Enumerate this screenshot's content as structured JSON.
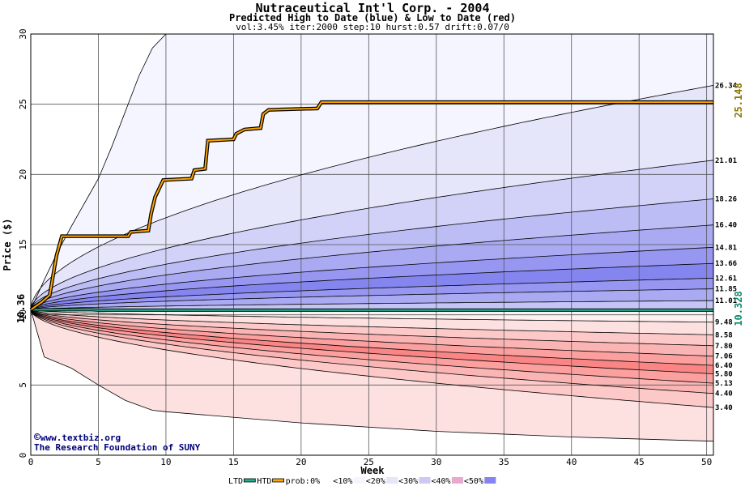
{
  "chart_data": {
    "type": "area",
    "title": "Nutraceutical Int'l Corp. - 2004",
    "subtitle": "Predicted High to Date (blue) &  Low to Date (red)",
    "params": "vol:3.45% iter:2000 step:10 hurst:0.57 drift:0.07/0",
    "xlabel": "Week",
    "ylabel": "Price ($)",
    "xlim": [
      0,
      50.5
    ],
    "ylim": [
      0,
      30
    ],
    "x_ticks": [
      0,
      5,
      10,
      15,
      20,
      25,
      30,
      35,
      40,
      45,
      50
    ],
    "y_ticks": [
      0,
      5,
      10,
      15,
      20,
      25,
      30
    ],
    "grid": true,
    "start_price": 10.36,
    "start_label": "10.36",
    "high_to_date": {
      "name": "HTD",
      "final_label": "25.148",
      "color": "#ffa500",
      "points": [
        [
          0,
          10.36
        ],
        [
          0.8,
          10.9
        ],
        [
          1.4,
          11.4
        ],
        [
          1.9,
          14.2
        ],
        [
          2.3,
          15.6
        ],
        [
          7.2,
          15.6
        ],
        [
          7.4,
          15.9
        ],
        [
          8.7,
          16.0
        ],
        [
          8.9,
          17.2
        ],
        [
          9.2,
          18.4
        ],
        [
          9.5,
          19.0
        ],
        [
          9.8,
          19.6
        ],
        [
          11.9,
          19.7
        ],
        [
          12.1,
          20.3
        ],
        [
          12.9,
          20.4
        ],
        [
          13.1,
          22.4
        ],
        [
          15.0,
          22.5
        ],
        [
          15.2,
          22.9
        ],
        [
          15.8,
          23.2
        ],
        [
          17.0,
          23.3
        ],
        [
          17.2,
          24.3
        ],
        [
          17.6,
          24.6
        ],
        [
          21.2,
          24.7
        ],
        [
          21.5,
          25.15
        ],
        [
          50.5,
          25.15
        ]
      ]
    },
    "low_to_date": {
      "name": "LTD",
      "final_label": "10.328",
      "color": "#20b090",
      "points": [
        [
          0,
          10.36
        ],
        [
          4.5,
          10.36
        ],
        [
          5.0,
          10.33
        ],
        [
          50.5,
          10.33
        ]
      ]
    },
    "upper_bands": {
      "final_labels": [
        "26.34",
        "21.01",
        "18.26",
        "16.40",
        "14.81",
        "13.66",
        "12.61",
        "11.85",
        "11.01"
      ],
      "final_values": [
        26.34,
        21.01,
        18.26,
        16.4,
        14.81,
        13.66,
        12.61,
        11.85,
        11.01
      ],
      "extreme_curve": [
        [
          0,
          10.36
        ],
        [
          1,
          12.5
        ],
        [
          2,
          14.5
        ],
        [
          3,
          16.3
        ],
        [
          4,
          18.0
        ],
        [
          5,
          19.7
        ],
        [
          6,
          22.0
        ],
        [
          7,
          24.5
        ],
        [
          8,
          27.0
        ],
        [
          9,
          29.0
        ],
        [
          10,
          30.0
        ]
      ],
      "fill_colors": [
        "#f5f5ff",
        "#e6e6fb",
        "#d2d2f8",
        "#bdbdf5",
        "#aaaaf3",
        "#9797f1",
        "#8585ef",
        "#9797f1",
        "#aaaaf3",
        "#c4c4f6"
      ]
    },
    "lower_bands": {
      "final_labels": [
        "9.48",
        "8.58",
        "7.80",
        "7.06",
        "6.40",
        "5.80",
        "5.13",
        "4.40",
        "3.40"
      ],
      "final_values": [
        9.48,
        8.58,
        7.8,
        7.06,
        6.4,
        5.8,
        5.13,
        4.4,
        3.4
      ],
      "extreme_curve": [
        [
          0,
          10.36
        ],
        [
          1,
          7.0
        ],
        [
          3,
          6.2
        ],
        [
          5,
          5.0
        ],
        [
          7,
          3.9
        ],
        [
          9,
          3.2
        ],
        [
          10,
          3.1
        ],
        [
          20,
          2.3
        ],
        [
          30,
          1.7
        ],
        [
          40,
          1.3
        ],
        [
          50.5,
          1.0
        ]
      ],
      "fill_colors": [
        "#fdf0f0",
        "#fde0e0",
        "#fcc8c8",
        "#fbb4b4",
        "#fb9f9f",
        "#fa8585",
        "#fb9f9f",
        "#fbb4b4",
        "#fcc8c8",
        "#fde0e0"
      ]
    }
  },
  "credit": {
    "url": "www.textbiz.org",
    "org": "The Research Foundation of SUNY"
  },
  "legend": {
    "ltd": "LTD",
    "htd": "HTD",
    "prob": "prob:",
    "items": [
      "0%",
      "<10%",
      "<20%",
      "<30%",
      "<40%",
      "<50%"
    ],
    "colors": [
      "#ffffff",
      "#f5f5ff",
      "#e6e6fb",
      "#d0c8f0",
      "#e8a8d0",
      "#8585ef"
    ]
  }
}
